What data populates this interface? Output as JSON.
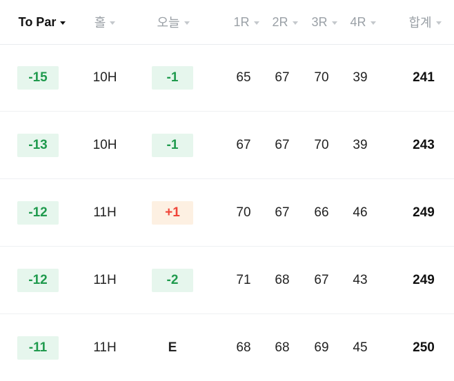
{
  "header": {
    "columns": [
      {
        "label": "To Par",
        "active": true
      },
      {
        "label": "홀",
        "active": false
      },
      {
        "label": "오늘",
        "active": false
      },
      {
        "label": "1R",
        "active": false
      },
      {
        "label": "2R",
        "active": false
      },
      {
        "label": "3R",
        "active": false
      },
      {
        "label": "4R",
        "active": false
      },
      {
        "label": "합계",
        "active": false
      }
    ]
  },
  "rows": [
    {
      "to_par": "-15",
      "hole": "10H",
      "today": "-1",
      "today_status": "under",
      "r1": "65",
      "r2": "67",
      "r3": "70",
      "r4": "39",
      "total": "241"
    },
    {
      "to_par": "-13",
      "hole": "10H",
      "today": "-1",
      "today_status": "under",
      "r1": "67",
      "r2": "67",
      "r3": "70",
      "r4": "39",
      "total": "243"
    },
    {
      "to_par": "-12",
      "hole": "11H",
      "today": "+1",
      "today_status": "over",
      "r1": "70",
      "r2": "67",
      "r3": "66",
      "r4": "46",
      "total": "249"
    },
    {
      "to_par": "-12",
      "hole": "11H",
      "today": "-2",
      "today_status": "under",
      "r1": "71",
      "r2": "68",
      "r3": "67",
      "r4": "43",
      "total": "249"
    },
    {
      "to_par": "-11",
      "hole": "11H",
      "today": "E",
      "today_status": "even",
      "r1": "68",
      "r2": "68",
      "r3": "69",
      "r4": "45",
      "total": "250"
    }
  ],
  "colors": {
    "under_bg": "#e6f6ed",
    "under_text": "#1f9a4d",
    "over_bg": "#fdf0e2",
    "over_text": "#f04438",
    "header_inactive": "#9aa0a6"
  }
}
